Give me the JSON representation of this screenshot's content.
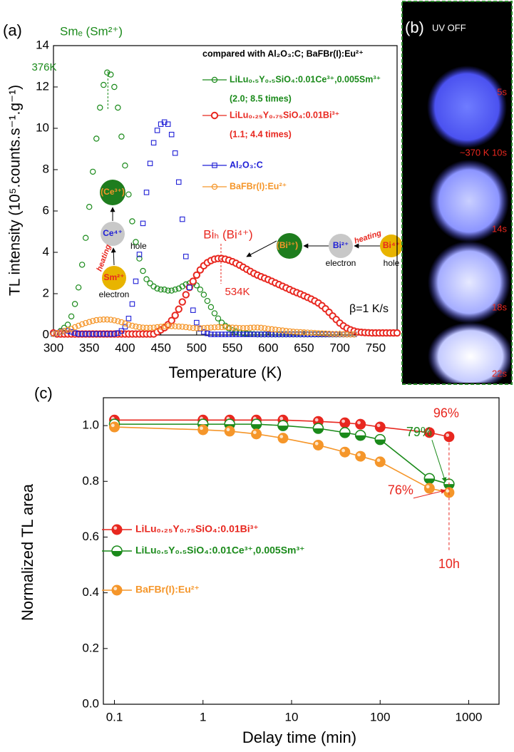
{
  "chart_data": [
    {
      "type": "line",
      "label": "(a)",
      "xlabel": "Temperature (K)",
      "ylabel": "TL intensity (10⁵.counts.s⁻¹.g⁻¹)",
      "xlim": [
        300,
        780
      ],
      "xticks": [
        300,
        350,
        400,
        450,
        500,
        550,
        600,
        650,
        700,
        750
      ],
      "ylim": [
        0,
        14
      ],
      "yticks": [
        0,
        2,
        4,
        6,
        8,
        10,
        12,
        14
      ],
      "grid": false,
      "legend_title": "compared with Al₂O₃:C; BaFBr(I):Eu²⁺",
      "rate_label": "β=1 K/s",
      "peaks": [
        {
          "label": "Smₑ (Sm²⁺)",
          "x": 376,
          "x_label": "376K",
          "color": "#1a8a1a"
        },
        {
          "label": "Biₕ (Bi⁴⁺)",
          "x": 534,
          "x_label": "534K",
          "color": "#e8271f"
        }
      ],
      "scheme_left": {
        "top": "(Ce³⁺)",
        "mid": "Ce⁴⁺",
        "mid_note": "hole",
        "arrow": "heating",
        "bottom": "Sm²⁺",
        "bottom_note": "electron"
      },
      "scheme_right": {
        "left": "(Bi³⁺)",
        "mid": "Bi²⁺",
        "mid_note": "electron",
        "arrow": "heating",
        "right": "Bi⁴⁺",
        "right_note": "hole"
      },
      "x": [
        300,
        305,
        310,
        315,
        320,
        325,
        330,
        335,
        340,
        345,
        350,
        355,
        360,
        365,
        370,
        375,
        380,
        385,
        390,
        395,
        400,
        405,
        410,
        415,
        420,
        425,
        430,
        435,
        440,
        445,
        450,
        455,
        460,
        465,
        470,
        475,
        480,
        485,
        490,
        495,
        500,
        505,
        510,
        515,
        520,
        525,
        530,
        535,
        540,
        545,
        550,
        555,
        560,
        565,
        570,
        575,
        580,
        585,
        590,
        595,
        600,
        605,
        610,
        615,
        620,
        625,
        630,
        635,
        640,
        645,
        650,
        655,
        660,
        665,
        670,
        675,
        680,
        685,
        690,
        695,
        700,
        705,
        710,
        715,
        720,
        725,
        730,
        735,
        740,
        745,
        750,
        755,
        760,
        765,
        770,
        775,
        780
      ],
      "series": [
        {
          "name": "LiLu₀.₅Y₀.₅SiO₄:0.01Ce³⁺,0.005Sm³⁺",
          "note": "(2.0;  8.5 times)",
          "color": "#1a8a1a",
          "marker": "circle-open",
          "values": [
            0.05,
            0.1,
            0.2,
            0.35,
            0.5,
            0.9,
            1.5,
            2.3,
            3.4,
            4.7,
            6.2,
            7.9,
            9.5,
            11.0,
            12.1,
            12.7,
            12.6,
            12.0,
            11.0,
            9.6,
            8.2,
            6.8,
            5.5,
            4.5,
            3.7,
            3.1,
            2.7,
            2.5,
            2.35,
            2.25,
            2.2,
            2.2,
            2.15,
            2.15,
            2.2,
            2.25,
            2.35,
            2.45,
            2.5,
            2.5,
            2.4,
            2.2,
            1.95,
            1.65,
            1.35,
            1.05,
            0.8,
            0.6,
            0.45,
            0.32,
            0.23,
            0.17,
            0.12,
            0.09,
            0.07,
            0.05,
            0.04,
            0.03,
            0.03,
            0.03,
            0.03,
            0.03,
            0.03,
            0.03,
            0.03,
            0.03,
            0.03,
            0.03,
            0.03,
            0.03,
            0.03,
            0.03,
            0.03,
            0.03,
            0.03,
            0.03,
            0.03,
            0.03,
            0.03,
            0.03,
            0.03,
            0.03,
            0.03,
            0.03,
            0.03,
            null,
            null,
            null,
            null,
            null,
            null,
            null,
            null,
            null,
            null,
            null,
            null
          ]
        },
        {
          "name": "LiLu₀.₂₅Y₀.₇₅SiO₄:0.01Bi³⁺",
          "note": "(1.1; 4.4 times)",
          "color": "#e8271f",
          "marker": "ring",
          "values": [
            0.1,
            0.05,
            0.05,
            0.05,
            0.05,
            0.05,
            0.05,
            0.05,
            0.05,
            0.05,
            0.05,
            0.05,
            0.05,
            0.05,
            0.05,
            0.05,
            0.05,
            0.05,
            0.05,
            0.05,
            0.05,
            0.05,
            0.05,
            0.05,
            0.05,
            0.05,
            0.05,
            0.05,
            0.05,
            0.15,
            0.25,
            0.35,
            0.5,
            0.7,
            0.95,
            1.25,
            1.6,
            1.95,
            2.3,
            2.6,
            2.9,
            3.15,
            3.35,
            3.5,
            3.6,
            3.67,
            3.7,
            3.7,
            3.67,
            3.62,
            3.55,
            3.47,
            3.38,
            3.28,
            3.18,
            3.08,
            2.98,
            2.9,
            2.82,
            2.75,
            2.68,
            2.6,
            2.52,
            2.44,
            2.36,
            2.28,
            2.2,
            2.12,
            2.05,
            1.98,
            1.9,
            1.82,
            1.74,
            1.65,
            1.55,
            1.42,
            1.27,
            1.1,
            0.92,
            0.75,
            0.58,
            0.44,
            0.33,
            0.25,
            0.19,
            0.15,
            0.13,
            0.12,
            0.11,
            0.1,
            0.1,
            0.1,
            0.1,
            0.1,
            0.1,
            0.1,
            0.1
          ]
        },
        {
          "name": "Al₂O₃:C",
          "color": "#1f1fd6",
          "marker": "square-open",
          "values": [
            0.05,
            0.1,
            0.15,
            0.2,
            0.2,
            0.15,
            0.1,
            0.05,
            0.05,
            0.05,
            0.05,
            0.05,
            0.05,
            0.05,
            0.05,
            0.05,
            0.05,
            0.05,
            0.1,
            0.2,
            0.4,
            0.8,
            1.5,
            2.6,
            3.9,
            5.4,
            6.9,
            8.3,
            9.3,
            9.9,
            10.2,
            10.3,
            10.2,
            9.7,
            8.8,
            7.4,
            5.6,
            3.8,
            2.3,
            1.2,
            0.6,
            0.3,
            0.15,
            0.08,
            0.03,
            0.03,
            0.03,
            0.03,
            0.03,
            0.03,
            0.03,
            0.03,
            0.03,
            0.03,
            0.03,
            0.03,
            0.03,
            0.03,
            0.03,
            0.03,
            0.03,
            0.03,
            0.03,
            0.03,
            0.03,
            0.03,
            0.03,
            0.03,
            0.03,
            0.03,
            0.03,
            0.03,
            0.03,
            0.03,
            0.03,
            0.03,
            0.03,
            0.03,
            0.03,
            0.03,
            0.03,
            0.03,
            0.03,
            0.03,
            0.03,
            null,
            null,
            null,
            null,
            null,
            null,
            null,
            null,
            null,
            null,
            null,
            null
          ]
        },
        {
          "name": "BaFBr(I):Eu²⁺",
          "color": "#f5962a",
          "marker": "circle-open",
          "values": [
            0.05,
            0.1,
            0.15,
            0.2,
            0.25,
            0.3,
            0.38,
            0.45,
            0.52,
            0.58,
            0.63,
            0.68,
            0.72,
            0.74,
            0.75,
            0.75,
            0.74,
            0.71,
            0.67,
            0.62,
            0.56,
            0.5,
            0.45,
            0.41,
            0.38,
            0.36,
            0.35,
            0.35,
            0.36,
            0.38,
            0.4,
            0.42,
            0.43,
            0.43,
            0.42,
            0.41,
            0.4,
            0.38,
            0.36,
            0.34,
            0.33,
            0.33,
            0.34,
            0.35,
            0.36,
            0.37,
            0.38,
            0.38,
            0.38,
            0.37,
            0.36,
            0.35,
            0.34,
            0.34,
            0.34,
            0.35,
            0.36,
            0.36,
            0.35,
            0.33,
            0.3,
            0.28,
            0.26,
            0.24,
            0.22,
            0.2,
            0.18,
            0.16,
            0.15,
            0.14,
            0.13,
            0.12,
            0.11,
            0.1,
            0.09,
            0.08,
            0.07,
            0.06,
            0.05,
            0.05,
            0.04,
            0.04,
            0.03,
            0.03,
            0.03,
            null,
            null,
            null,
            null,
            null,
            null,
            null,
            null,
            null,
            null,
            null,
            null
          ]
        }
      ]
    },
    {
      "type": "line",
      "label": "(c)",
      "xlabel": "Delay time (min)",
      "ylabel": "Normalized TL area",
      "log_x": true,
      "xlim": [
        0.075,
        2200
      ],
      "xticks": [
        0.1,
        1,
        10,
        100,
        1000
      ],
      "ylim": [
        0,
        1.1
      ],
      "yticks": [
        {
          "value": 0,
          "label": "0.0"
        },
        0.2,
        0.4,
        0.6,
        0.8,
        {
          "value": 1,
          "label": "1.0"
        }
      ],
      "grid": false,
      "end_marker": {
        "x": 600,
        "label": "10h"
      },
      "x": [
        0.1,
        1,
        2,
        4,
        8,
        20,
        40,
        60,
        100,
        360,
        600
      ],
      "series": [
        {
          "name": "LiLu₀.₂₅Y₀.₇₅SiO₄:0.01Bi³⁺",
          "color": "#e8271f",
          "marker": "sphere",
          "values": [
            1.02,
            1.02,
            1.02,
            1.02,
            1.02,
            1.015,
            1.01,
            1.005,
            0.995,
            0.975,
            0.96
          ],
          "value_labels": [
            null,
            null,
            null,
            null,
            null,
            null,
            null,
            null,
            null,
            null,
            "96%"
          ]
        },
        {
          "name": "LiLu₀.₅Y₀.₅SiO₄:0.01Ce³⁺,0.005Sm³⁺",
          "color": "#1a8a1a",
          "marker": "half",
          "values": [
            1.005,
            1.005,
            1.005,
            1.005,
            1.0,
            0.99,
            0.975,
            0.965,
            0.95,
            0.81,
            0.79
          ],
          "value_labels": [
            null,
            null,
            null,
            null,
            null,
            null,
            null,
            null,
            null,
            null,
            "79%"
          ]
        },
        {
          "name": "BaFBr(I):Eu²⁺",
          "color": "#f5962a",
          "marker": "sphere",
          "label_color": "#e8271f",
          "values": [
            0.995,
            0.985,
            0.98,
            0.97,
            0.955,
            0.93,
            0.905,
            0.89,
            0.87,
            0.775,
            0.76
          ],
          "value_labels": [
            null,
            null,
            null,
            null,
            null,
            null,
            null,
            null,
            null,
            null,
            "76%"
          ]
        }
      ]
    }
  ],
  "photo": {
    "label": "(b)",
    "title": "UV OFF",
    "frames": [
      "5s",
      "~370 K 10s",
      "14s",
      "18s",
      "22s"
    ]
  }
}
